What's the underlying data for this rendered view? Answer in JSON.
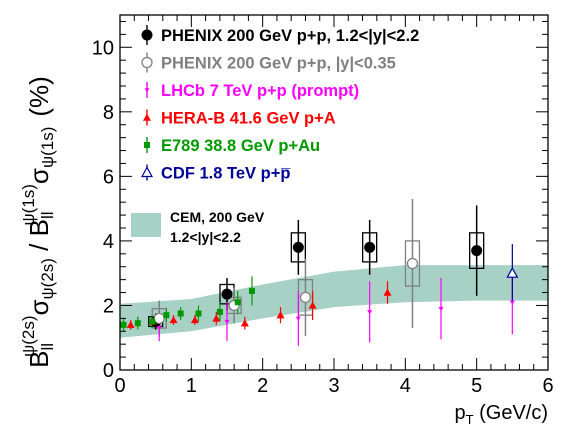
{
  "chart_data": {
    "type": "scatter",
    "xlabel_main": "p",
    "xlabel_sub": "T",
    "xlabel_units": " (GeV/c)",
    "ylabel_parts": {
      "b1": "B",
      "b1_sub": "ll",
      "b1_sup": "ψ(2s)",
      "s1": "σ",
      "s1_sub": "ψ(2s)",
      "slash": " / ",
      "b2": "B",
      "b2_sub": "ll",
      "b2_sup": "ψ(1s)",
      "s2": "σ",
      "s2_sub": "ψ(1s)",
      "units": "(%)"
    },
    "xlim": [
      0,
      6
    ],
    "ylim": [
      0,
      11
    ],
    "x_ticks": [
      "0",
      "1",
      "2",
      "3",
      "4",
      "5",
      "6"
    ],
    "y_ticks": [
      "0",
      "2",
      "4",
      "6",
      "8",
      "10"
    ],
    "grid": false,
    "legend_position": "top-left",
    "band": {
      "label_line1": "CEM, 200 GeV",
      "label_line2": "1.2<|y|<2.2",
      "color": "#a8d1c5",
      "lower": [
        [
          0,
          1.0
        ],
        [
          1,
          1.2
        ],
        [
          2,
          1.6
        ],
        [
          3,
          1.95
        ],
        [
          4,
          2.1
        ],
        [
          5,
          2.15
        ],
        [
          6,
          2.15
        ]
      ],
      "upper": [
        [
          0,
          2.05
        ],
        [
          1,
          2.2
        ],
        [
          2,
          2.65
        ],
        [
          3,
          3.05
        ],
        [
          4,
          3.25
        ],
        [
          5,
          3.25
        ],
        [
          6,
          3.25
        ]
      ]
    },
    "series": [
      {
        "name": "PHENIX 200 GeV p+p, 1.2<|y|<2.2",
        "color": "#000000",
        "marker": "filled-circle",
        "sys_box": true,
        "points": [
          {
            "x": 0.5,
            "y": 1.5,
            "err": 0.25,
            "sys": 0.15
          },
          {
            "x": 1.5,
            "y": 2.35,
            "err": 0.5,
            "sys": 0.3
          },
          {
            "x": 2.5,
            "y": 3.8,
            "err": 0.85,
            "sys": 0.45
          },
          {
            "x": 3.5,
            "y": 3.8,
            "err": 0.85,
            "sys": 0.45
          },
          {
            "x": 5.0,
            "y": 3.7,
            "err": 1.4,
            "sys": 0.55
          }
        ]
      },
      {
        "name": "PHENIX 200 GeV p+p, |y|<0.35",
        "color": "#808080",
        "marker": "open-circle",
        "sys_box": true,
        "points": [
          {
            "x": 0.55,
            "y": 1.6,
            "err": 0.55,
            "sys": 0.3
          },
          {
            "x": 1.6,
            "y": 2.0,
            "err": 0.55,
            "sys": 0.25
          },
          {
            "x": 2.6,
            "y": 2.25,
            "err": 1.2,
            "sys": 0.55
          },
          {
            "x": 4.1,
            "y": 3.3,
            "err": 2.0,
            "sys": 0.7
          }
        ]
      },
      {
        "name": "LHCb 7 TeV p+p (prompt)",
        "color": "#ff00ff",
        "marker": "small-down-triangle",
        "sys_box": false,
        "points": [
          {
            "x": 0.55,
            "y": 1.3,
            "err": 0.4
          },
          {
            "x": 1.5,
            "y": 1.5,
            "err": 0.6
          },
          {
            "x": 2.5,
            "y": 1.6,
            "err": 0.85
          },
          {
            "x": 3.5,
            "y": 1.8,
            "err": 0.95
          },
          {
            "x": 4.5,
            "y": 1.9,
            "err": 0.95
          },
          {
            "x": 5.5,
            "y": 2.1,
            "err": 1.0
          }
        ]
      },
      {
        "name": "HERA-B 41.6 GeV p+A",
        "color": "#ff0000",
        "marker": "filled-up-triangle",
        "sys_box": false,
        "points": [
          {
            "x": 0.15,
            "y": 1.4,
            "err": 0.15
          },
          {
            "x": 0.45,
            "y": 1.5,
            "err": 0.15
          },
          {
            "x": 0.75,
            "y": 1.55,
            "err": 0.15
          },
          {
            "x": 1.05,
            "y": 1.55,
            "err": 0.15
          },
          {
            "x": 1.35,
            "y": 1.6,
            "err": 0.2
          },
          {
            "x": 1.75,
            "y": 1.45,
            "err": 0.2
          },
          {
            "x": 2.25,
            "y": 1.7,
            "err": 0.25
          },
          {
            "x": 2.7,
            "y": 2.0,
            "err": 0.45
          },
          {
            "x": 3.75,
            "y": 2.4,
            "err": 0.35
          }
        ]
      },
      {
        "name": "E789 38.8 GeV p+Au",
        "color": "#009900",
        "marker": "filled-square",
        "sys_box": false,
        "points": [
          {
            "x": 0.05,
            "y": 1.4,
            "err": 0.2
          },
          {
            "x": 0.25,
            "y": 1.45,
            "err": 0.2
          },
          {
            "x": 0.45,
            "y": 1.5,
            "err": 0.2
          },
          {
            "x": 0.65,
            "y": 1.7,
            "err": 0.2
          },
          {
            "x": 0.85,
            "y": 1.75,
            "err": 0.2
          },
          {
            "x": 1.1,
            "y": 1.75,
            "err": 0.25
          },
          {
            "x": 1.4,
            "y": 1.8,
            "err": 0.3
          },
          {
            "x": 1.65,
            "y": 2.1,
            "err": 0.35
          },
          {
            "x": 1.85,
            "y": 2.45,
            "err": 0.45
          }
        ]
      },
      {
        "name": "CDF 1.8 TeV p+p̅",
        "color": "#000099",
        "marker": "open-up-triangle",
        "sys_box": false,
        "points": [
          {
            "x": 5.5,
            "y": 3.0,
            "err": 0.9
          }
        ]
      }
    ]
  }
}
